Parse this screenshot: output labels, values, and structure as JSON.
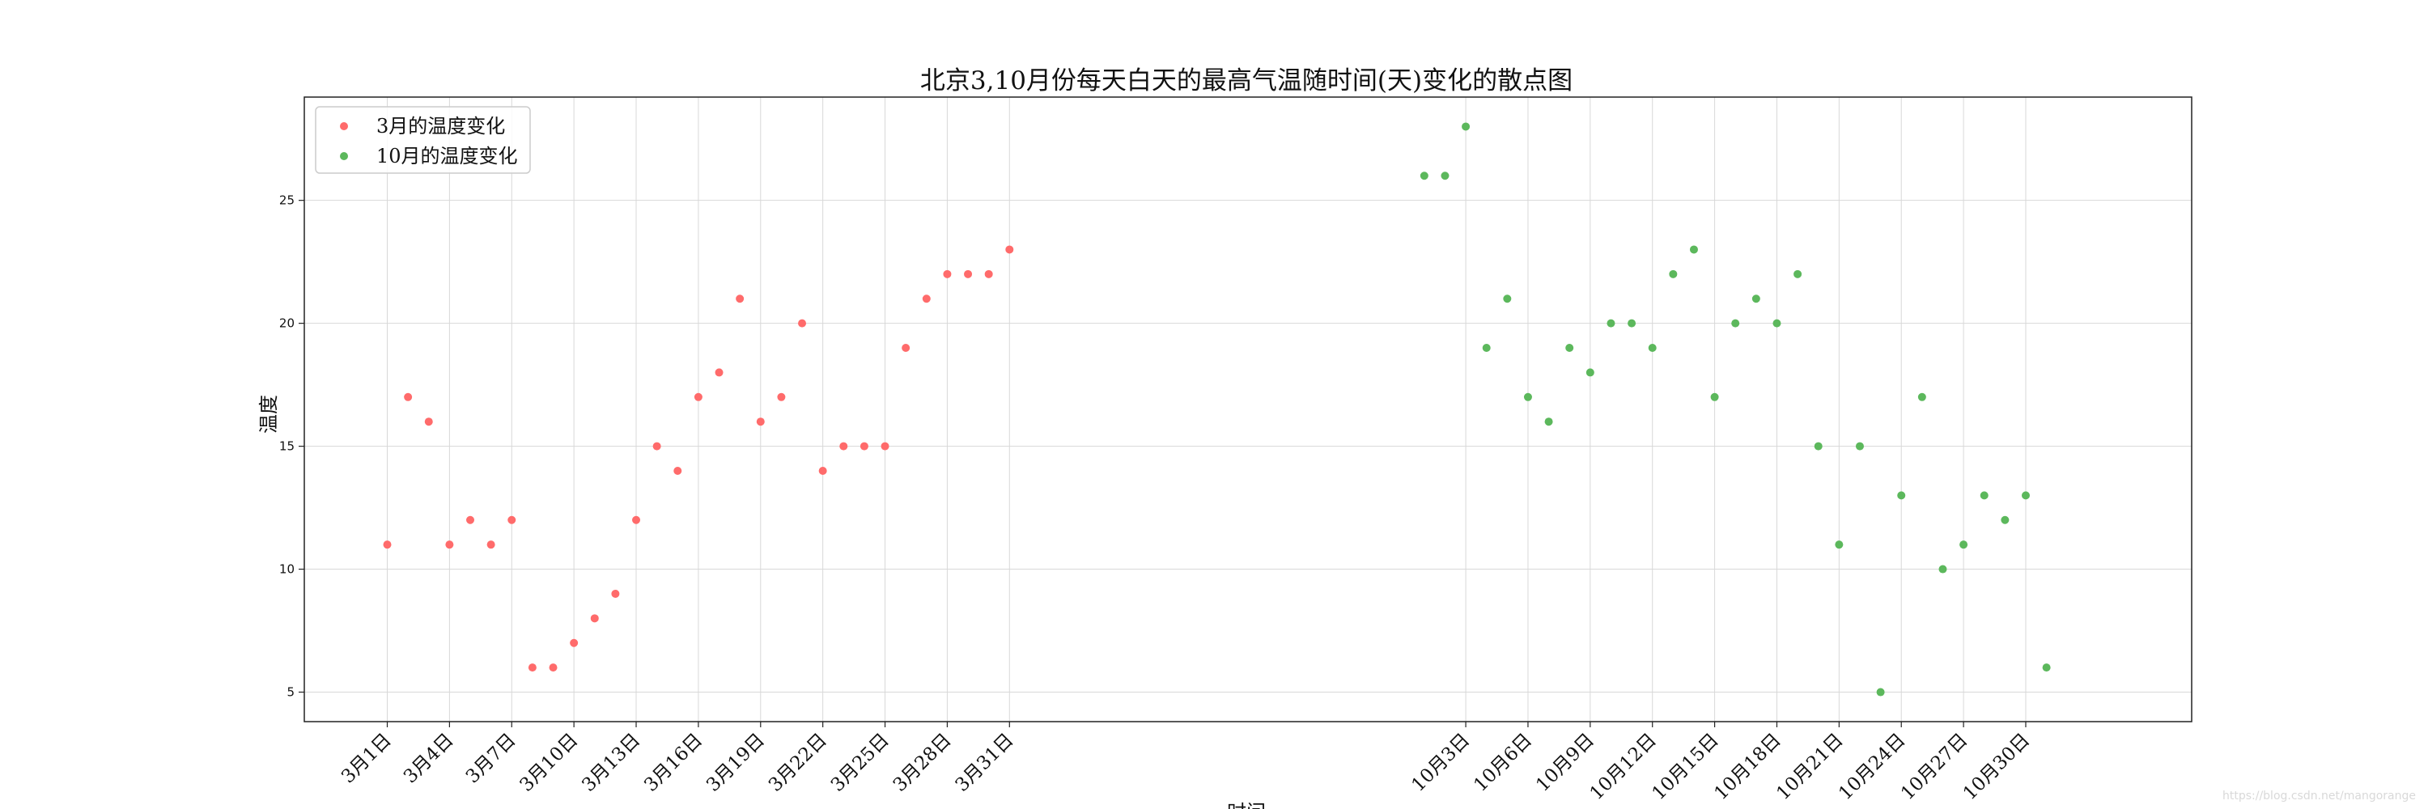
{
  "chart_data": {
    "type": "scatter",
    "title": "北京3,10月份每天白天的最高气温随时间(天)变化的散点图",
    "xlabel": "时间",
    "ylabel": "温度",
    "grid": true,
    "legend_position": "top-left",
    "x_tick_labels": [
      "3月1日",
      "3月4日",
      "3月7日",
      "3月10日",
      "3月13日",
      "3月16日",
      "3月19日",
      "3月22日",
      "3月25日",
      "3月28日",
      "3月31日",
      "10月3日",
      "10月6日",
      "10月9日",
      "10月12日",
      "10月15日",
      "10月18日",
      "10月21日",
      "10月24日",
      "10月27日",
      "10月30日"
    ],
    "y_ticks": [
      5,
      10,
      15,
      20,
      25
    ],
    "ylim": [
      3.8,
      29.2
    ],
    "series": [
      {
        "name": "3月的温度变化",
        "color": "#ff6b6b",
        "x": [
          1,
          2,
          3,
          4,
          5,
          6,
          7,
          8,
          9,
          10,
          11,
          12,
          13,
          14,
          15,
          16,
          17,
          18,
          19,
          20,
          21,
          22,
          23,
          24,
          25,
          26,
          27,
          28,
          29,
          30,
          31
        ],
        "y": [
          11,
          17,
          16,
          11,
          12,
          11,
          12,
          6,
          6,
          7,
          8,
          9,
          12,
          15,
          14,
          17,
          18,
          21,
          16,
          17,
          20,
          14,
          15,
          15,
          15,
          19,
          21,
          22,
          22,
          22,
          23
        ]
      },
      {
        "name": "10月的温度变化",
        "color": "#5cb85c",
        "x": [
          51,
          52,
          53,
          54,
          55,
          56,
          57,
          58,
          59,
          60,
          61,
          62,
          63,
          64,
          65,
          66,
          67,
          68,
          69,
          70,
          71,
          72,
          73,
          74,
          75,
          76,
          77,
          78,
          79,
          80,
          81
        ],
        "y": [
          26,
          26,
          28,
          19,
          21,
          17,
          16,
          19,
          18,
          20,
          20,
          19,
          22,
          23,
          17,
          20,
          21,
          20,
          22,
          15,
          11,
          15,
          5,
          13,
          17,
          10,
          11,
          13,
          12,
          13,
          6
        ]
      }
    ]
  },
  "watermark": "https://blog.csdn.net/mangorange"
}
